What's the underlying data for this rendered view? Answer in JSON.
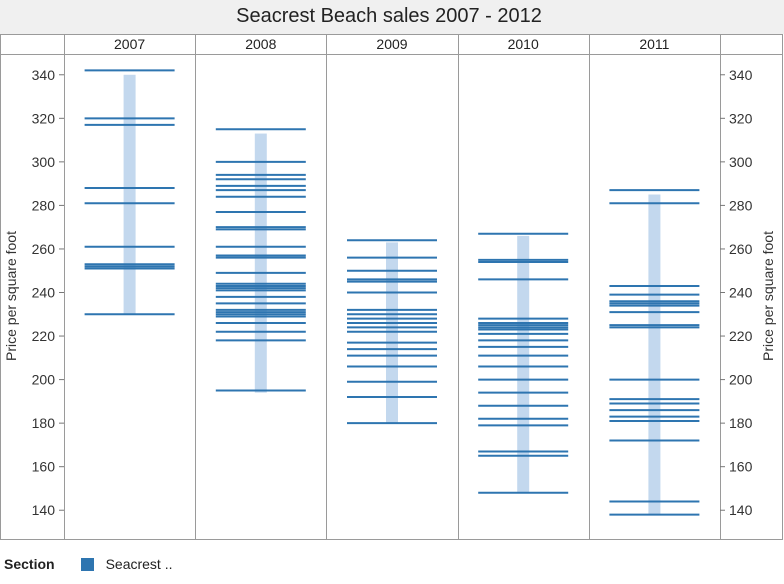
{
  "colors": {
    "tick_mark": "#2e75b0",
    "band": "#c3d8ee",
    "legend_swatch": "#2e75b0"
  },
  "legend": {
    "title": "Section",
    "item": "Seacrest .."
  },
  "chart_data": {
    "type": "tick",
    "title": "Seacrest Beach sales 2007 - 2012",
    "ylabel": "Price per square foot",
    "ylim": [
      130,
      350
    ],
    "yticks": [
      140,
      160,
      180,
      200,
      220,
      240,
      260,
      280,
      300,
      320,
      340
    ],
    "columns": [
      "2007",
      "2008",
      "2009",
      "2010",
      "2011"
    ],
    "series": [
      {
        "x": "2007",
        "range": [
          230,
          340
        ],
        "values": [
          342,
          320,
          317,
          288,
          281,
          261,
          253,
          252,
          251,
          230
        ]
      },
      {
        "x": "2008",
        "range": [
          194,
          313
        ],
        "values": [
          315,
          300,
          294,
          292,
          289,
          287,
          284,
          277,
          270,
          269,
          261,
          257,
          256,
          249,
          244,
          243,
          242,
          241,
          238,
          235,
          232,
          231,
          230,
          229,
          226,
          222,
          218,
          195
        ]
      },
      {
        "x": "2009",
        "range": [
          180,
          263
        ],
        "values": [
          264,
          256,
          250,
          246,
          245,
          240,
          232,
          230,
          228,
          226,
          224,
          222,
          217,
          214,
          211,
          206,
          199,
          192,
          180
        ]
      },
      {
        "x": "2010",
        "range": [
          148,
          266
        ],
        "values": [
          267,
          255,
          254,
          246,
          228,
          226,
          225,
          224,
          223,
          221,
          218,
          215,
          211,
          206,
          200,
          194,
          188,
          182,
          179,
          167,
          165,
          148
        ]
      },
      {
        "x": "2011",
        "range": [
          138,
          285
        ],
        "values": [
          287,
          281,
          243,
          239,
          236,
          235,
          234,
          231,
          225,
          224,
          200,
          191,
          189,
          186,
          183,
          181,
          172,
          144,
          138
        ]
      }
    ]
  }
}
